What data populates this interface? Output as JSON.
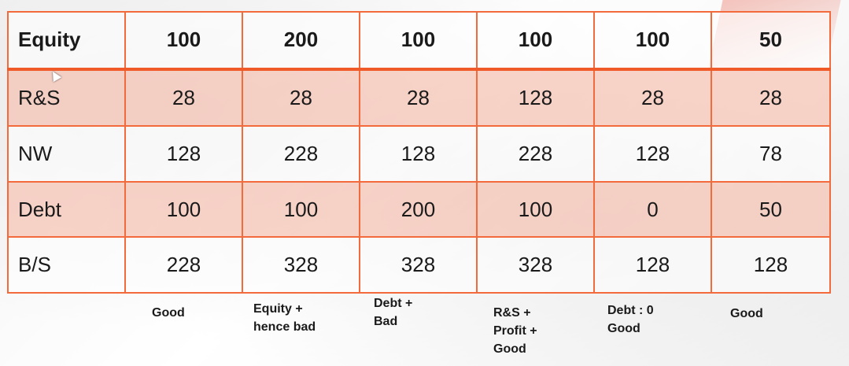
{
  "table": {
    "header": [
      "Equity",
      "100",
      "200",
      "100",
      "100",
      "100",
      "50"
    ],
    "rows": [
      [
        "R&S",
        "28",
        "28",
        "28",
        "128",
        "28",
        "28"
      ],
      [
        "NW",
        "128",
        "228",
        "128",
        "228",
        "128",
        "78"
      ],
      [
        "Debt",
        "100",
        "100",
        "200",
        "100",
        "0",
        "50"
      ],
      [
        "B/S",
        "228",
        "328",
        "328",
        "328",
        "128",
        "128"
      ]
    ]
  },
  "notes": [
    "Good",
    "Equity +\nhence bad",
    "Debt +\nBad",
    "R&S +\nProfit +\nGood",
    "Debt : 0\nGood",
    "Good"
  ],
  "colors": {
    "border": "#f36a3c",
    "shade": "#f7b4a0"
  }
}
